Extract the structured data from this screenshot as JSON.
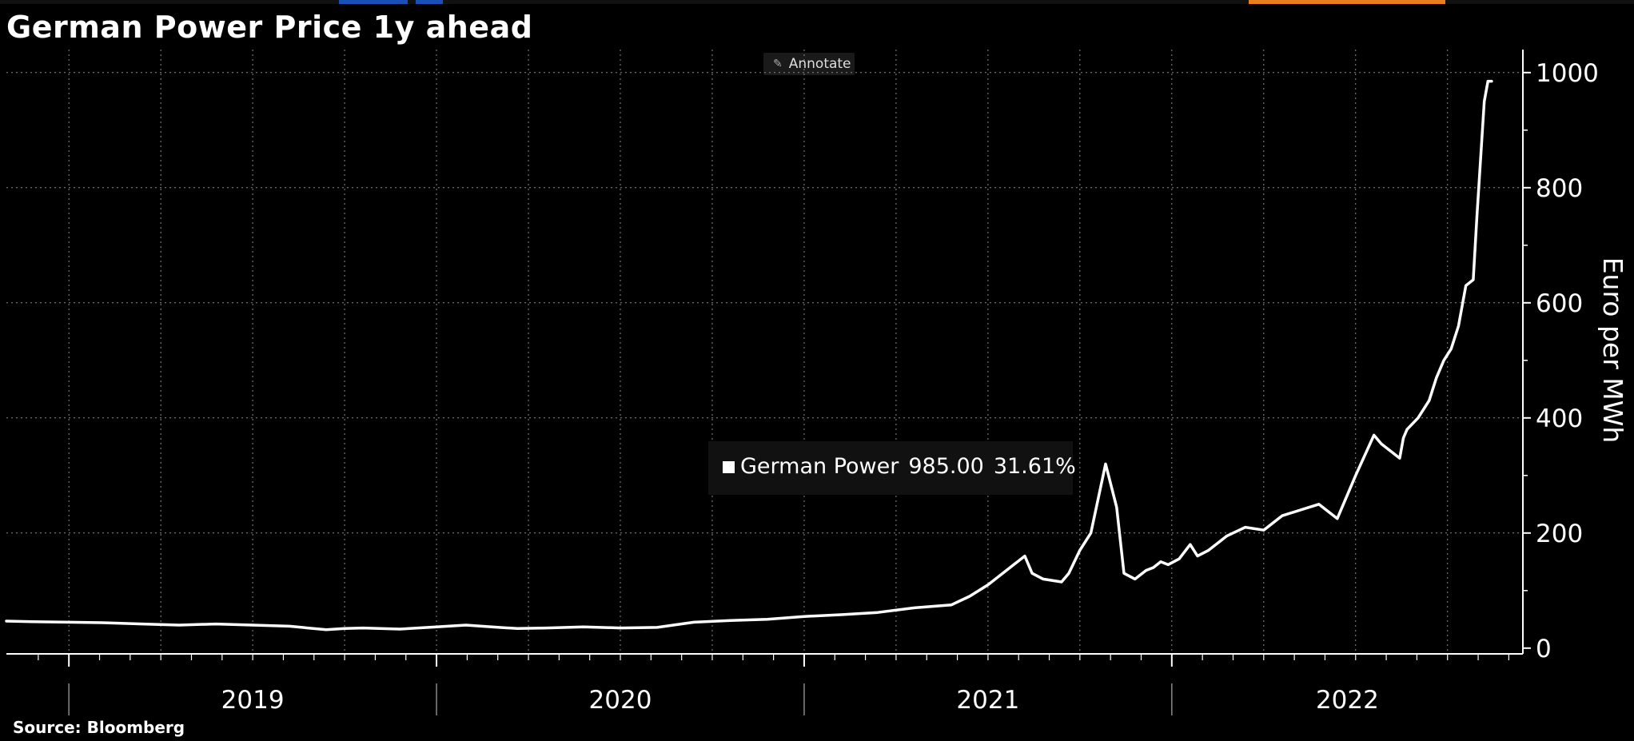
{
  "title": "German Power Price 1y ahead",
  "toolbar": {
    "annotate_label": "Annotate",
    "annotate_icon": "pencil-icon"
  },
  "source": "Source: Bloomberg",
  "colors": {
    "background": "#000000",
    "line": "#ffffff",
    "grid": "#8a8a8a",
    "accent": "#e87e1e",
    "tab": "#1a4fb8"
  },
  "legend": {
    "name": "German Power",
    "last_value": "985.00",
    "change": "31.61%"
  },
  "chart_data": {
    "type": "line",
    "title": "German Power Price 1y ahead",
    "ylabel": "Euro per MWh",
    "xlabel": "",
    "ylim": [
      -10,
      1040
    ],
    "yticks": [
      0,
      200,
      400,
      600,
      800,
      1000
    ],
    "ytick_labels": [
      "0",
      "200",
      "400",
      "600",
      "800",
      "1000"
    ],
    "year_labels": [
      "2019",
      "2020",
      "2021",
      "2022"
    ],
    "grid": true,
    "series": [
      {
        "name": "German Power",
        "x": [
          2018.83,
          2018.9,
          2019.0,
          2019.1,
          2019.2,
          2019.3,
          2019.4,
          2019.5,
          2019.6,
          2019.7,
          2019.75,
          2019.8,
          2019.9,
          2020.0,
          2020.08,
          2020.17,
          2020.22,
          2020.3,
          2020.4,
          2020.5,
          2020.6,
          2020.7,
          2020.8,
          2020.9,
          2021.0,
          2021.1,
          2021.2,
          2021.3,
          2021.4,
          2021.45,
          2021.5,
          2021.55,
          2021.6,
          2021.62,
          2021.65,
          2021.7,
          2021.72,
          2021.75,
          2021.78,
          2021.82,
          2021.85,
          2021.87,
          2021.9,
          2021.93,
          2021.95,
          2021.97,
          2021.99,
          2022.02,
          2022.05,
          2022.07,
          2022.1,
          2022.15,
          2022.2,
          2022.25,
          2022.3,
          2022.35,
          2022.4,
          2022.45,
          2022.5,
          2022.55,
          2022.57,
          2022.6,
          2022.62,
          2022.63,
          2022.64,
          2022.67,
          2022.68,
          2022.7,
          2022.72,
          2022.74,
          2022.76,
          2022.78,
          2022.8,
          2022.81,
          2022.82,
          2022.83,
          2022.84,
          2022.85,
          2022.86,
          2022.87
        ],
        "values": [
          47,
          46,
          45,
          44,
          42,
          40,
          42,
          40,
          38,
          32,
          34,
          35,
          33,
          37,
          40,
          36,
          34,
          35,
          37,
          35,
          36,
          45,
          48,
          50,
          55,
          58,
          62,
          70,
          75,
          90,
          110,
          135,
          160,
          130,
          120,
          115,
          130,
          170,
          200,
          320,
          245,
          130,
          120,
          135,
          140,
          150,
          145,
          155,
          180,
          160,
          170,
          195,
          210,
          205,
          230,
          240,
          250,
          225,
          300,
          370,
          355,
          340,
          330,
          365,
          380,
          400,
          410,
          430,
          470,
          500,
          520,
          560,
          630,
          635,
          640,
          750,
          850,
          950,
          985,
          985
        ]
      }
    ]
  }
}
